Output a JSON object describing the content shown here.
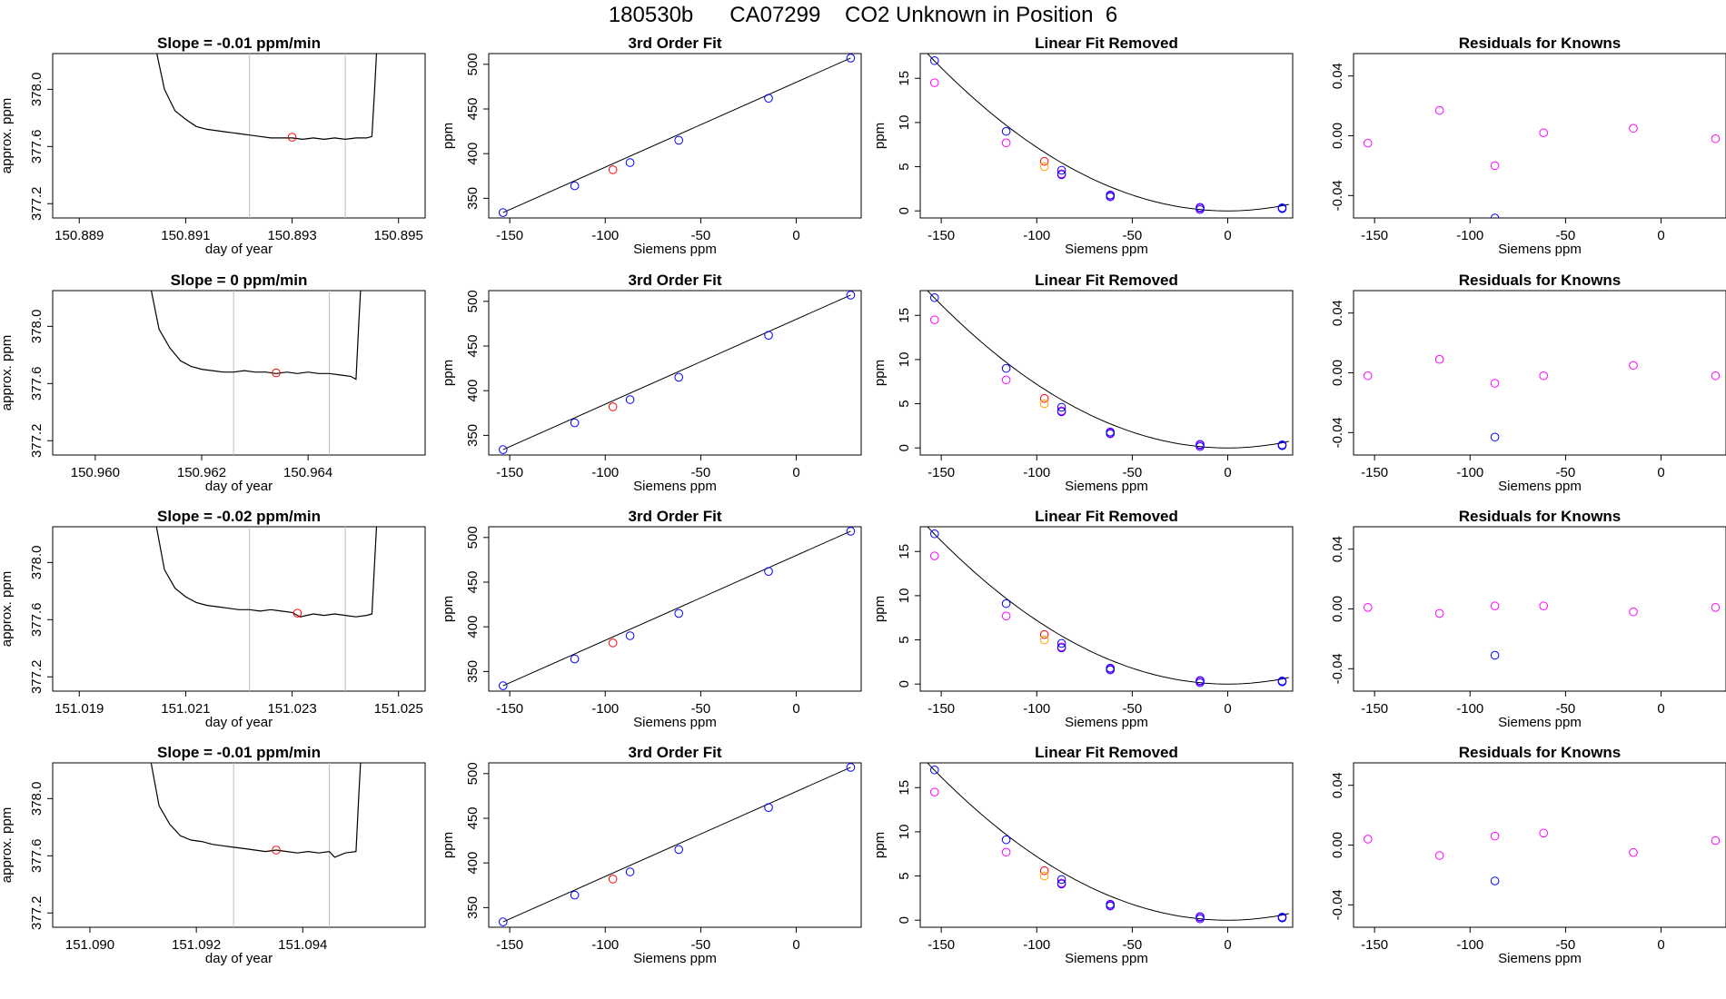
{
  "page_title": "180530b      CA07299    CO2 Unknown in Position  6",
  "colors": {
    "trace": "#000000",
    "reference_line": "#bebebe",
    "fit_curve": "#000000",
    "known_points": "#0000ff",
    "unknown_point": "#ff0000",
    "raw_points": "#ff00ff",
    "unknown_point_linear": "#ffa500"
  },
  "chart_data": [
    {
      "type": "line",
      "panel": "trace",
      "row": 0,
      "title": "Slope =  -0.01  ppm/min",
      "xlabel": "day of year",
      "ylabel": "approx. ppm",
      "xlim": [
        150.8885,
        150.8955
      ],
      "ylim": [
        377.1,
        378.25
      ],
      "xticks": [
        150.889,
        150.891,
        150.893,
        150.895
      ],
      "yticks": [
        377.2,
        377.6,
        378.0
      ],
      "vlines": [
        150.8922,
        150.894
      ],
      "series": [
        {
          "x": [
            150.8904,
            150.8906,
            150.8908,
            150.891,
            150.8912,
            150.8914,
            150.8916,
            150.8918,
            150.892,
            150.8922,
            150.8924,
            150.8926,
            150.8928,
            150.893,
            150.8932,
            150.8934,
            150.8936,
            150.8938,
            150.894,
            150.8942,
            150.8944,
            150.8945,
            150.89455,
            150.8946
          ],
          "y": [
            378.35,
            378.0,
            377.85,
            377.79,
            377.74,
            377.72,
            377.71,
            377.7,
            377.69,
            377.68,
            377.67,
            377.66,
            377.66,
            377.66,
            377.65,
            377.66,
            377.65,
            377.66,
            377.65,
            377.66,
            377.66,
            377.67,
            378.0,
            378.35
          ]
        }
      ],
      "marker": {
        "x": 150.893,
        "y": 377.665
      }
    },
    {
      "type": "scatter",
      "panel": "fit",
      "row": 0,
      "title": "3rd Order Fit",
      "xlabel": "Siemens ppm",
      "ylabel": "ppm",
      "xlim": [
        -161,
        34
      ],
      "ylim": [
        328,
        512
      ],
      "xticks": [
        -150,
        -100,
        -50,
        0
      ],
      "yticks": [
        350,
        400,
        450,
        500
      ],
      "knowns": {
        "x": [
          -153.5,
          -116,
          -87,
          -61.5,
          -14.5,
          28.5
        ],
        "y": [
          334,
          364,
          390,
          415,
          462,
          507
        ]
      },
      "unknown": {
        "x": -96,
        "y": 382
      },
      "fit_line": {
        "x": [
          -153.5,
          28.5
        ],
        "y": [
          334,
          507
        ]
      }
    },
    {
      "type": "scatter",
      "panel": "linear_removed",
      "row": 0,
      "title": "Linear Fit Removed",
      "xlabel": "Siemens ppm",
      "ylabel": "ppm",
      "xlim": [
        -161,
        34
      ],
      "ylim": [
        -0.8,
        17.8
      ],
      "xticks": [
        -150,
        -100,
        -50,
        0
      ],
      "yticks": [
        0,
        5,
        10,
        15
      ],
      "curve": {
        "vertex_x": 0,
        "coef": 0.00072
      },
      "knowns": {
        "x": [
          -153.5,
          -116,
          -87,
          -87,
          -61.5,
          -61.5,
          -14.5,
          -14.5,
          28.5,
          28.5
        ],
        "y": [
          17.0,
          9.0,
          4.6,
          4.1,
          1.8,
          1.6,
          0.4,
          0.15,
          0.35,
          0.25
        ]
      },
      "raw": {
        "x": [
          -153.5,
          -116,
          -87,
          -61.5,
          -14.5,
          28.5
        ],
        "y": [
          14.5,
          7.7,
          4.2,
          1.7,
          0.3,
          0.3
        ]
      },
      "unknown": {
        "x": [
          -96,
          -96
        ],
        "y": [
          5.6,
          5.0
        ]
      }
    },
    {
      "type": "scatter",
      "panel": "residuals",
      "row": 0,
      "title": "Residuals for Knowns",
      "xlabel": "Siemens ppm",
      "ylabel": "",
      "xlim": [
        -161,
        34
      ],
      "ylim": [
        -0.055,
        0.055
      ],
      "xticks": [
        -150,
        -100,
        -50,
        0
      ],
      "yticks": [
        -0.04,
        0.0,
        0.04
      ],
      "points": {
        "x": [
          -153.5,
          -116,
          -87,
          -61.5,
          -14.5,
          28.5
        ],
        "y": [
          -0.005,
          0.017,
          -0.02,
          0.002,
          0.005,
          -0.002
        ]
      },
      "knowns": {
        "x": [
          -87
        ],
        "y": [
          -0.055
        ]
      }
    },
    {
      "type": "line",
      "panel": "trace",
      "row": 1,
      "title": "Slope =  0  ppm/min",
      "xlabel": "day of year",
      "ylabel": "approx. ppm",
      "xlim": [
        150.9592,
        150.9662
      ],
      "ylim": [
        377.1,
        378.25
      ],
      "xticks": [
        150.96,
        150.962,
        150.964
      ],
      "yticks": [
        377.2,
        377.6,
        378.0
      ],
      "vlines": [
        150.9626,
        150.9644
      ],
      "series": [
        {
          "x": [
            150.961,
            150.9612,
            150.9614,
            150.9616,
            150.9618,
            150.962,
            150.9622,
            150.9624,
            150.9626,
            150.9628,
            150.963,
            150.9632,
            150.9634,
            150.9636,
            150.9638,
            150.964,
            150.9642,
            150.9644,
            150.9646,
            150.9648,
            150.9649,
            150.96495,
            150.965
          ],
          "y": [
            378.35,
            377.98,
            377.85,
            377.76,
            377.72,
            377.7,
            377.69,
            377.68,
            377.68,
            377.69,
            377.68,
            377.68,
            377.67,
            377.68,
            377.67,
            377.68,
            377.67,
            377.67,
            377.66,
            377.65,
            377.63,
            378.0,
            378.35
          ]
        }
      ],
      "marker": {
        "x": 150.9634,
        "y": 377.675
      }
    },
    {
      "type": "scatter",
      "panel": "fit",
      "row": 1,
      "title": "3rd Order Fit",
      "xlabel": "Siemens ppm",
      "ylabel": "ppm",
      "xlim": [
        -161,
        34
      ],
      "ylim": [
        328,
        512
      ],
      "xticks": [
        -150,
        -100,
        -50,
        0
      ],
      "yticks": [
        350,
        400,
        450,
        500
      ],
      "knowns": {
        "x": [
          -153.5,
          -116,
          -87,
          -61.5,
          -14.5,
          28.5
        ],
        "y": [
          334,
          364,
          390,
          415,
          462,
          507
        ]
      },
      "unknown": {
        "x": -96,
        "y": 382
      },
      "fit_line": {
        "x": [
          -153.5,
          28.5
        ],
        "y": [
          334,
          507
        ]
      }
    },
    {
      "type": "scatter",
      "panel": "linear_removed",
      "row": 1,
      "title": "Linear Fit Removed",
      "xlabel": "Siemens ppm",
      "ylabel": "ppm",
      "xlim": [
        -161,
        34
      ],
      "ylim": [
        -0.8,
        17.8
      ],
      "xticks": [
        -150,
        -100,
        -50,
        0
      ],
      "yticks": [
        0,
        5,
        10,
        15
      ],
      "curve": {
        "vertex_x": 0,
        "coef": 0.00072
      },
      "knowns": {
        "x": [
          -153.5,
          -116,
          -87,
          -87,
          -61.5,
          -61.5,
          -14.5,
          -14.5,
          28.5,
          28.5
        ],
        "y": [
          17.0,
          9.0,
          4.6,
          4.1,
          1.8,
          1.6,
          0.4,
          0.15,
          0.35,
          0.25
        ]
      },
      "raw": {
        "x": [
          -153.5,
          -116,
          -87,
          -61.5,
          -14.5,
          28.5
        ],
        "y": [
          14.5,
          7.7,
          4.2,
          1.7,
          0.3,
          0.3
        ]
      },
      "unknown": {
        "x": [
          -96,
          -96
        ],
        "y": [
          5.6,
          5.0
        ]
      }
    },
    {
      "type": "scatter",
      "panel": "residuals",
      "row": 1,
      "title": "Residuals for Knowns",
      "xlabel": "Siemens ppm",
      "ylabel": "",
      "xlim": [
        -161,
        34
      ],
      "ylim": [
        -0.055,
        0.055
      ],
      "xticks": [
        -150,
        -100,
        -50,
        0
      ],
      "yticks": [
        -0.04,
        0.0,
        0.04
      ],
      "points": {
        "x": [
          -153.5,
          -116,
          -87,
          -61.5,
          -14.5,
          28.5
        ],
        "y": [
          -0.002,
          0.009,
          -0.007,
          -0.002,
          0.005,
          -0.002
        ]
      },
      "knowns": {
        "x": [
          -87
        ],
        "y": [
          -0.043
        ]
      }
    },
    {
      "type": "line",
      "panel": "trace",
      "row": 2,
      "title": "Slope =  -0.02  ppm/min",
      "xlabel": "day of year",
      "ylabel": "approx. ppm",
      "xlim": [
        151.0185,
        151.0255
      ],
      "ylim": [
        377.1,
        378.25
      ],
      "xticks": [
        151.019,
        151.021,
        151.023,
        151.025
      ],
      "yticks": [
        377.2,
        377.6,
        378.0
      ],
      "vlines": [
        151.0222,
        151.024
      ],
      "series": [
        {
          "x": [
            151.0204,
            151.0206,
            151.0208,
            151.021,
            151.0212,
            151.0214,
            151.0216,
            151.0218,
            151.022,
            151.0222,
            151.0224,
            151.0226,
            151.0228,
            151.023,
            151.02315,
            151.0234,
            151.0236,
            151.0238,
            151.024,
            151.0242,
            151.0244,
            151.0245,
            151.02455,
            151.0246
          ],
          "y": [
            378.35,
            377.95,
            377.82,
            377.76,
            377.72,
            377.7,
            377.69,
            377.68,
            377.67,
            377.67,
            377.66,
            377.67,
            377.66,
            377.65,
            377.62,
            377.64,
            377.63,
            377.64,
            377.63,
            377.62,
            377.63,
            377.64,
            378.0,
            378.35
          ]
        }
      ],
      "marker": {
        "x": 151.0231,
        "y": 377.645
      }
    },
    {
      "type": "scatter",
      "panel": "fit",
      "row": 2,
      "title": "3rd Order Fit",
      "xlabel": "Siemens ppm",
      "ylabel": "ppm",
      "xlim": [
        -161,
        34
      ],
      "ylim": [
        328,
        512
      ],
      "xticks": [
        -150,
        -100,
        -50,
        0
      ],
      "yticks": [
        350,
        400,
        450,
        500
      ],
      "knowns": {
        "x": [
          -153.5,
          -116,
          -87,
          -61.5,
          -14.5,
          28.5
        ],
        "y": [
          334,
          364,
          390,
          415,
          462,
          507
        ]
      },
      "unknown": {
        "x": -96,
        "y": 382
      },
      "fit_line": {
        "x": [
          -153.5,
          28.5
        ],
        "y": [
          334,
          507
        ]
      }
    },
    {
      "type": "scatter",
      "panel": "linear_removed",
      "row": 2,
      "title": "Linear Fit Removed",
      "xlabel": "Siemens ppm",
      "ylabel": "ppm",
      "xlim": [
        -161,
        34
      ],
      "ylim": [
        -0.8,
        17.8
      ],
      "xticks": [
        -150,
        -100,
        -50,
        0
      ],
      "yticks": [
        0,
        5,
        10,
        15
      ],
      "curve": {
        "vertex_x": 0,
        "coef": 0.00072
      },
      "knowns": {
        "x": [
          -153.5,
          -116,
          -87,
          -87,
          -61.5,
          -61.5,
          -14.5,
          -14.5,
          28.5,
          28.5
        ],
        "y": [
          17.0,
          9.1,
          4.6,
          4.1,
          1.8,
          1.6,
          0.4,
          0.15,
          0.35,
          0.25
        ]
      },
      "raw": {
        "x": [
          -153.5,
          -116,
          -87,
          -61.5,
          -14.5,
          28.5
        ],
        "y": [
          14.5,
          7.7,
          4.2,
          1.7,
          0.3,
          0.3
        ]
      },
      "unknown": {
        "x": [
          -96,
          -96
        ],
        "y": [
          5.6,
          5.0
        ]
      }
    },
    {
      "type": "scatter",
      "panel": "residuals",
      "row": 2,
      "title": "Residuals for Knowns",
      "xlabel": "Siemens ppm",
      "ylabel": "",
      "xlim": [
        -161,
        34
      ],
      "ylim": [
        -0.055,
        0.055
      ],
      "xticks": [
        -150,
        -100,
        -50,
        0
      ],
      "yticks": [
        -0.04,
        0.0,
        0.04
      ],
      "points": {
        "x": [
          -153.5,
          -116,
          -87,
          -61.5,
          -14.5,
          28.5
        ],
        "y": [
          0.001,
          -0.003,
          0.002,
          0.002,
          -0.002,
          0.001
        ]
      },
      "knowns": {
        "x": [
          -87
        ],
        "y": [
          -0.031
        ]
      }
    },
    {
      "type": "line",
      "panel": "trace",
      "row": 3,
      "title": "Slope =  -0.01  ppm/min",
      "xlabel": "day of year",
      "ylabel": "approx. ppm",
      "xlim": [
        151.0893,
        151.0963
      ],
      "ylim": [
        377.1,
        378.25
      ],
      "xticks": [
        151.09,
        151.092,
        151.094
      ],
      "yticks": [
        377.2,
        377.6,
        378.0
      ],
      "vlines": [
        151.0927,
        151.0945
      ],
      "series": [
        {
          "x": [
            151.0911,
            151.0913,
            151.0915,
            151.0917,
            151.0919,
            151.0921,
            151.0923,
            151.0925,
            151.0927,
            151.0929,
            151.0931,
            151.0933,
            151.0935,
            151.0937,
            151.0939,
            151.0941,
            151.0943,
            151.0945,
            151.0946,
            151.0948,
            151.095,
            151.09505,
            151.0951
          ],
          "y": [
            378.35,
            377.95,
            377.82,
            377.74,
            377.71,
            377.7,
            377.68,
            377.67,
            377.66,
            377.65,
            377.64,
            377.63,
            377.64,
            377.63,
            377.62,
            377.63,
            377.62,
            377.63,
            377.59,
            377.62,
            377.63,
            378.0,
            378.35
          ]
        }
      ],
      "marker": {
        "x": 151.0935,
        "y": 377.64
      }
    },
    {
      "type": "scatter",
      "panel": "fit",
      "row": 3,
      "title": "3rd Order Fit",
      "xlabel": "Siemens ppm",
      "ylabel": "ppm",
      "xlim": [
        -161,
        34
      ],
      "ylim": [
        328,
        512
      ],
      "xticks": [
        -150,
        -100,
        -50,
        0
      ],
      "yticks": [
        350,
        400,
        450,
        500
      ],
      "knowns": {
        "x": [
          -153.5,
          -116,
          -87,
          -61.5,
          -14.5,
          28.5
        ],
        "y": [
          334,
          364,
          390,
          415,
          462,
          507
        ]
      },
      "unknown": {
        "x": -96,
        "y": 382
      },
      "fit_line": {
        "x": [
          -153.5,
          28.5
        ],
        "y": [
          334,
          507
        ]
      }
    },
    {
      "type": "scatter",
      "panel": "linear_removed",
      "row": 3,
      "title": "Linear Fit Removed",
      "xlabel": "Siemens ppm",
      "ylabel": "ppm",
      "xlim": [
        -161,
        34
      ],
      "ylim": [
        -0.8,
        17.8
      ],
      "xticks": [
        -150,
        -100,
        -50,
        0
      ],
      "yticks": [
        0,
        5,
        10,
        15
      ],
      "curve": {
        "vertex_x": 0,
        "coef": 0.00072
      },
      "knowns": {
        "x": [
          -153.5,
          -116,
          -87,
          -87,
          -61.5,
          -61.5,
          -14.5,
          -14.5,
          28.5,
          28.5
        ],
        "y": [
          17.0,
          9.1,
          4.6,
          4.1,
          1.8,
          1.6,
          0.4,
          0.15,
          0.35,
          0.25
        ]
      },
      "raw": {
        "x": [
          -153.5,
          -116,
          -87,
          -61.5,
          -14.5,
          28.5
        ],
        "y": [
          14.5,
          7.7,
          4.2,
          1.7,
          0.3,
          0.3
        ]
      },
      "unknown": {
        "x": [
          -96,
          -96
        ],
        "y": [
          5.6,
          5.0
        ]
      }
    },
    {
      "type": "scatter",
      "panel": "residuals",
      "row": 3,
      "title": "Residuals for Knowns",
      "xlabel": "Siemens ppm",
      "ylabel": "",
      "xlim": [
        -161,
        34
      ],
      "ylim": [
        -0.055,
        0.055
      ],
      "xticks": [
        -150,
        -100,
        -50,
        0
      ],
      "yticks": [
        -0.04,
        0.0,
        0.04
      ],
      "points": {
        "x": [
          -153.5,
          -116,
          -87,
          -61.5,
          -14.5,
          28.5
        ],
        "y": [
          0.004,
          -0.007,
          0.006,
          0.008,
          -0.005,
          0.003
        ]
      },
      "knowns": {
        "x": [
          -87
        ],
        "y": [
          -0.024
        ]
      }
    }
  ]
}
